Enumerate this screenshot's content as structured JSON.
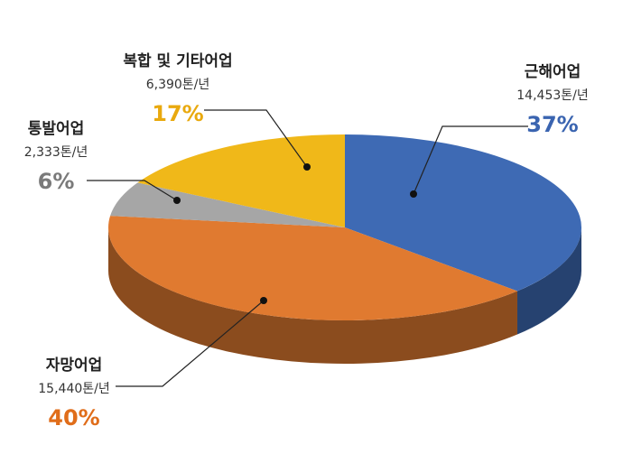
{
  "chart_data": {
    "type": "pie",
    "categories": [
      "근해어업",
      "자망어업",
      "통발어업",
      "복합 및 기타어업"
    ],
    "values": [
      37,
      40,
      6,
      17
    ],
    "value_labels": [
      "37%",
      "40%",
      "6%",
      "17%"
    ],
    "amount_labels": [
      "14,453톤/년",
      "15,440톤/년",
      "2,333톤/년",
      "6,390톤/년"
    ],
    "colors": [
      "#3e6ab4",
      "#e07a30",
      "#a6a6a6",
      "#f0b819"
    ],
    "label_colors": [
      "#3a64b0",
      "#e06d1a",
      "#7a7a7a",
      "#e9a90e"
    ]
  }
}
